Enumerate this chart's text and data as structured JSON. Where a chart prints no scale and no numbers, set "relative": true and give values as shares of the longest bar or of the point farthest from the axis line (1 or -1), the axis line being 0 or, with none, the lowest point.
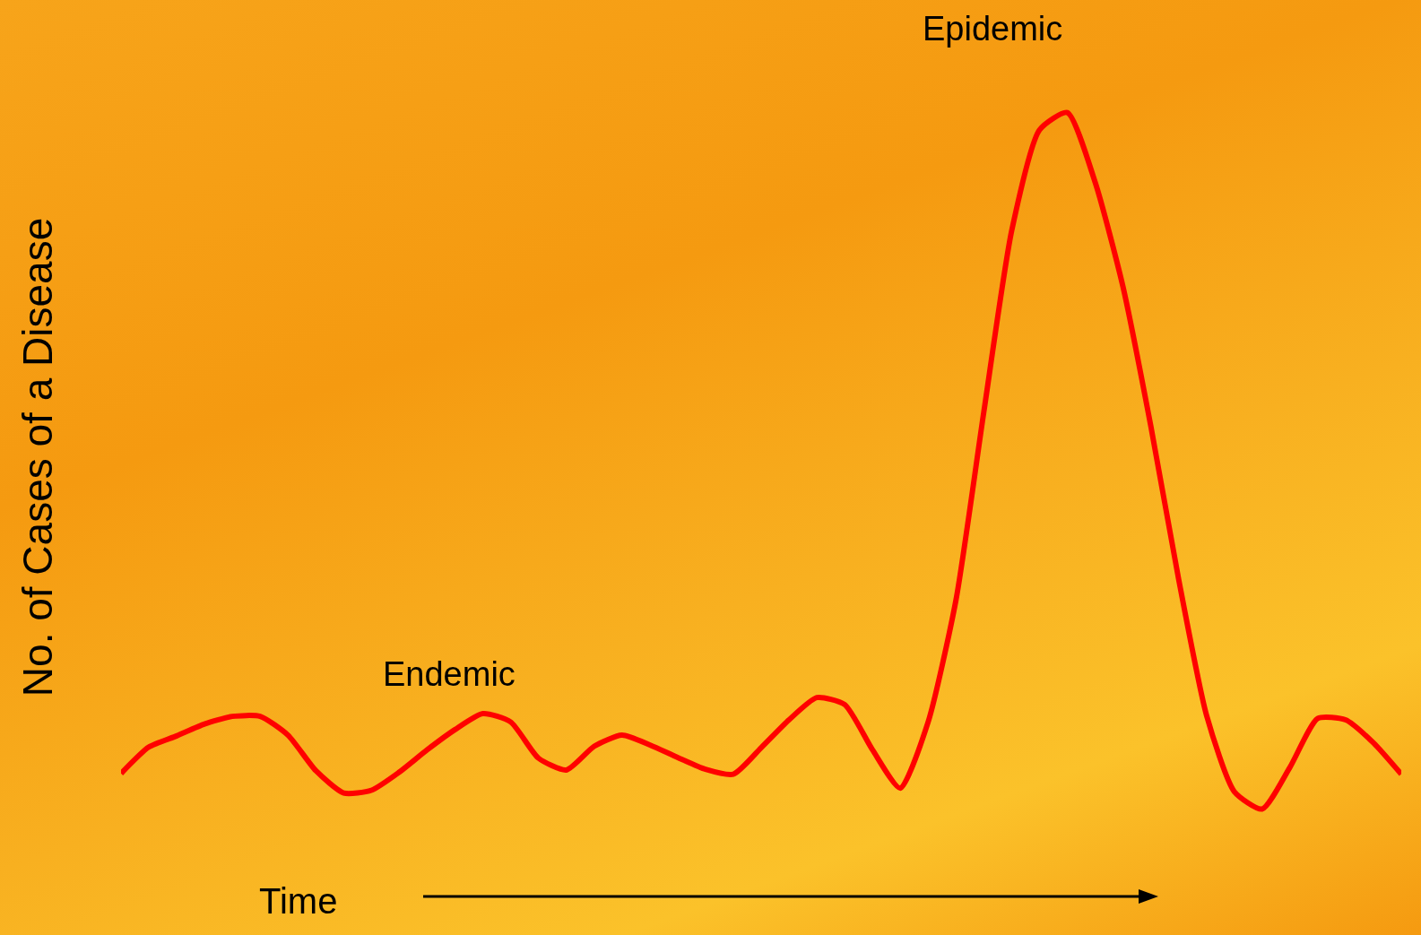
{
  "chart_data": {
    "type": "line",
    "relative": true,
    "xlabel": "Time",
    "ylabel": "No. of Cases of a Disease",
    "annotations": [
      "Endemic",
      "Epidemic"
    ],
    "categories": [
      null,
      null,
      null,
      null,
      null,
      null,
      null,
      null,
      null,
      null,
      null,
      null,
      null,
      null,
      null,
      null,
      null,
      null,
      null,
      null,
      null,
      null,
      null,
      null,
      null,
      null,
      null,
      null,
      null,
      null,
      null,
      null,
      null,
      null,
      null,
      null,
      null,
      null,
      null,
      null,
      null,
      null,
      null,
      null,
      null,
      null,
      null
    ],
    "series": [
      {
        "color": "#ff0000",
        "values": [
          0.051,
          0.089,
          0.105,
          0.122,
          0.133,
          0.133,
          0.106,
          0.055,
          0.023,
          0.027,
          0.053,
          0.085,
          0.114,
          0.137,
          0.125,
          0.073,
          0.056,
          0.09,
          0.106,
          0.092,
          0.074,
          0.057,
          0.05,
          0.088,
          0.128,
          0.16,
          0.15,
          0.085,
          0.03,
          0.125,
          0.3,
          0.57,
          0.83,
          0.975,
          1,
          0.9,
          0.75,
          0.55,
          0.33,
          0.135,
          0.025,
          0,
          0.06,
          0.13,
          0.128,
          0.095,
          0.05
        ]
      }
    ],
    "marker": "none",
    "line_style": "solid"
  }
}
